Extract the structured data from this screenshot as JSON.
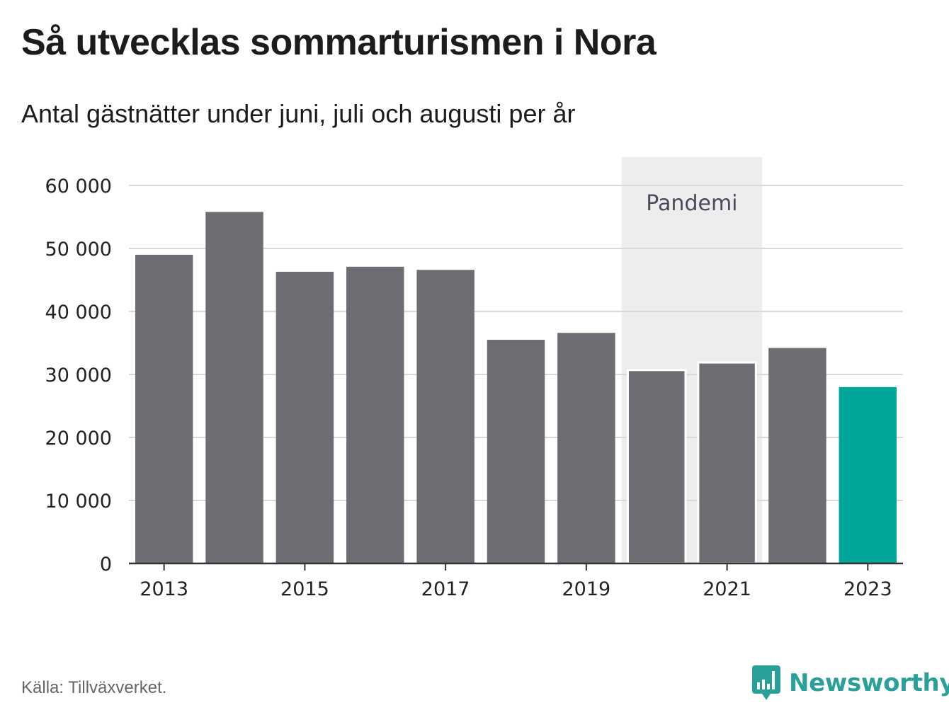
{
  "title": "Så utvecklas sommarturismen i Nora",
  "subtitle": "Antal gästnätter under juni, juli och augusti per år",
  "source": "Källa: Tillväxverket.",
  "brand": "Newsworthy",
  "colors": {
    "bar": "#6e6d73",
    "highlight": "#00a699",
    "pandemic": "#ededed",
    "brand": "#2aa198"
  },
  "chart_data": {
    "type": "bar",
    "categories": [
      "2013",
      "2014",
      "2015",
      "2016",
      "2017",
      "2018",
      "2019",
      "2020",
      "2021",
      "2022",
      "2023"
    ],
    "values": [
      49000,
      55800,
      46300,
      47100,
      46600,
      35500,
      36600,
      30700,
      31900,
      34200,
      28000
    ],
    "highlight": "2023",
    "ylim": [
      0,
      60000
    ],
    "yticks": [
      0,
      10000,
      20000,
      30000,
      40000,
      50000,
      60000
    ],
    "ytick_labels": [
      "0",
      "10 000",
      "20 000",
      "30 000",
      "40 000",
      "50 000",
      "60 000"
    ],
    "xtick_labels": [
      "2013",
      "2015",
      "2017",
      "2019",
      "2021",
      "2023"
    ],
    "annotation": {
      "label": "Pandemi",
      "from": "2020",
      "to": "2021"
    },
    "grid": true
  }
}
